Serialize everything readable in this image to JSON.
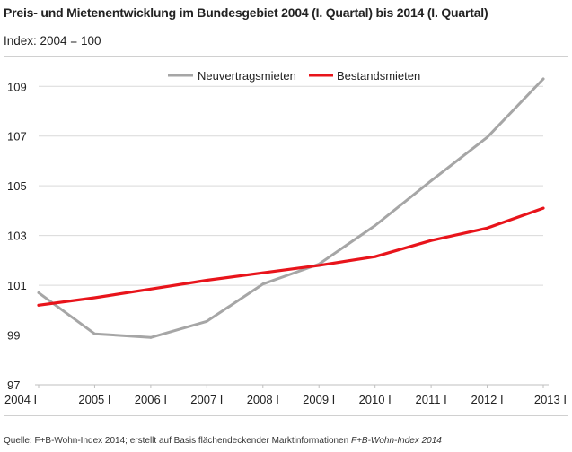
{
  "title": "Preis- und Mietenentwicklung im Bundesgebiet 2004 (I. Quartal) bis 2014 (I. Quartal)",
  "subtitle": "Index: 2004 = 100",
  "source_prefix": "Quelle: F+B-Wohn-Index 2014; erstellt auf Basis flächendeckender Marktinformationen ",
  "source_italic": "F+B-Wohn-Index 2014",
  "colors": {
    "neu": "#a6a6a6",
    "bestand": "#e8141b",
    "grid": "#d9d9d9",
    "text": "#222222"
  },
  "chart_data": {
    "type": "line",
    "title": "Preis- und Mietenentwicklung im Bundesgebiet 2004 (I. Quartal) bis 2014 (I. Quartal)",
    "subtitle": "Index: 2004 = 100",
    "categories": [
      "2004 I",
      "2005 I",
      "2006 I",
      "2007 I",
      "2008 I",
      "2009 I",
      "2010 I",
      "2011 I",
      "2012 I",
      "2013 I"
    ],
    "y_ticks": [
      97,
      99,
      101,
      103,
      105,
      107,
      109
    ],
    "ylim": [
      97,
      110.2
    ],
    "grid": "horizontal",
    "legend_position": "top",
    "series": [
      {
        "name": "Neuvertragsmieten",
        "color": "#a6a6a6",
        "values": [
          100.7,
          99.05,
          98.9,
          99.55,
          101.05,
          101.85,
          103.4,
          105.2,
          106.95,
          109.3
        ]
      },
      {
        "name": "Bestandsmieten",
        "color": "#e8141b",
        "values": [
          100.2,
          100.5,
          100.85,
          101.2,
          101.5,
          101.8,
          102.15,
          102.8,
          103.3,
          104.1
        ]
      }
    ]
  }
}
